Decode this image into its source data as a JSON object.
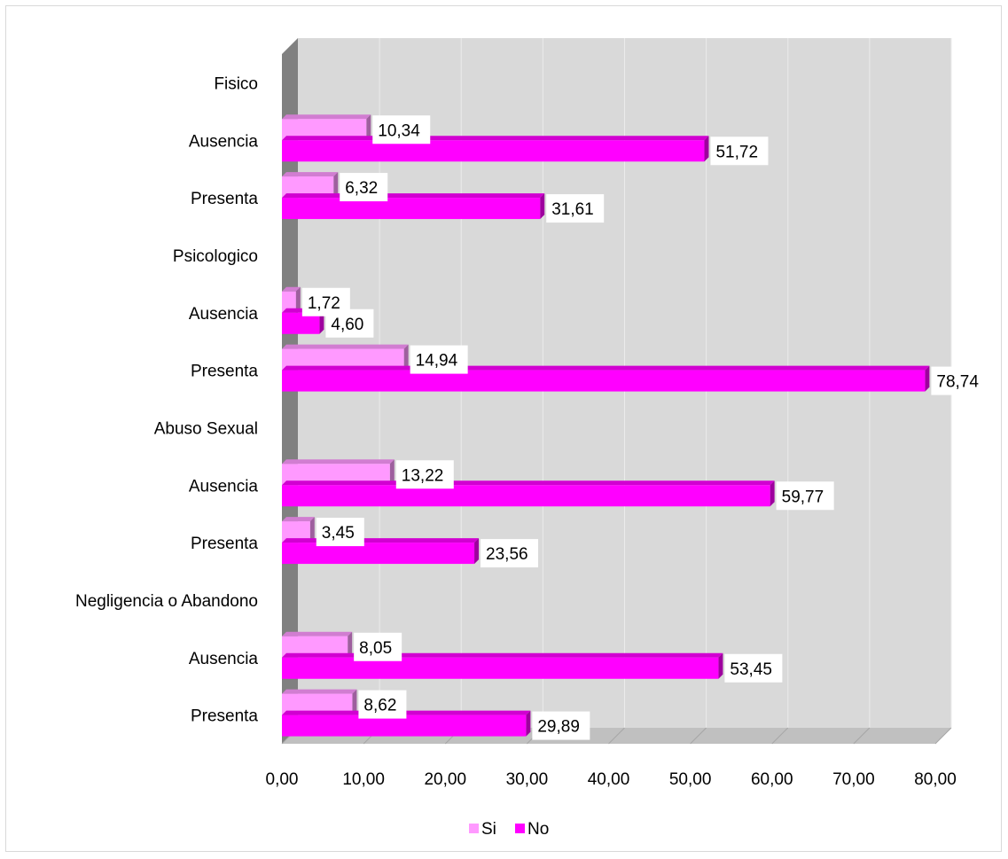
{
  "chart_data": {
    "type": "bar",
    "orientation": "horizontal",
    "style": "3d-clustered",
    "title": "",
    "xlabel": "",
    "ylabel": "",
    "xlim": [
      0,
      80
    ],
    "x_ticks": [
      "0,00",
      "10,00",
      "20,00",
      "30,00",
      "40,00",
      "50,00",
      "60,00",
      "70,00",
      "80,00"
    ],
    "grid": true,
    "legend_position": "bottom",
    "categories": [
      "Fisico",
      "Ausencia",
      "Presenta",
      "Psicologico",
      "Ausencia",
      "Presenta",
      "Abuso Sexual",
      "Ausencia",
      "Presenta",
      "Negligencia o Abandono",
      "Ausencia",
      "Presenta"
    ],
    "series": [
      {
        "name": "Si",
        "color": "#ff99ff",
        "values": [
          null,
          10.34,
          6.32,
          null,
          1.72,
          14.94,
          null,
          13.22,
          3.45,
          null,
          8.05,
          8.62
        ],
        "labels": [
          null,
          "10,34",
          "6,32",
          null,
          "1,72",
          "14,94",
          null,
          "13,22",
          "3,45",
          null,
          "8,05",
          "8,62"
        ]
      },
      {
        "name": "No",
        "color": "#ff00ff",
        "values": [
          null,
          51.72,
          31.61,
          null,
          4.6,
          78.74,
          null,
          59.77,
          23.56,
          null,
          53.45,
          29.89
        ],
        "labels": [
          null,
          "51,72",
          "31,61",
          null,
          "4,60",
          "78,74",
          null,
          "59,77",
          "23,56",
          null,
          "53,45",
          "29,89"
        ]
      }
    ],
    "colors": {
      "wall": "#d9d9d9",
      "side_wall": "#808080",
      "floor": "#c0c0c0",
      "grid": "#ebebeb"
    }
  }
}
